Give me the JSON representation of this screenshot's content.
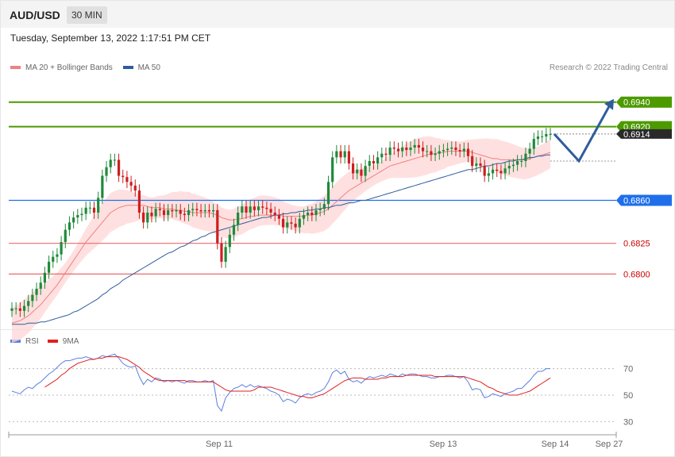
{
  "header": {
    "symbol": "AUD/USD",
    "timeframe": "30 MIN",
    "datetime": "Tuesday, September 13, 2022 1:17:51 PM CET"
  },
  "legend": {
    "ma20": "MA 20 + Bollinger Bands",
    "ma50": "MA 50",
    "copyright": "Research © 2022 Trading Central"
  },
  "rsi_legend": {
    "rsi": "RSI",
    "ma9": "9MA"
  },
  "colors": {
    "resistance": "#4c9a00",
    "pivot": "#1f6feb",
    "support": "#ec6a6a",
    "support_text": "#cc0000",
    "current": "#2a2a2a",
    "bull": "#1f8a3a",
    "bear": "#cc1f1f",
    "bollinger": "#ffd6d6",
    "ma20": "#f08080",
    "ma50": "#2f5d9c",
    "rsi": "#5b7fe0",
    "rsi_ma": "#e01f1f",
    "arrow": "#2f5d9c"
  },
  "chart_data": [
    {
      "type": "candlestick",
      "symbol": "AUD/USD",
      "interval": "30 MIN",
      "ylim": [
        0.6755,
        0.6965
      ],
      "levels": [
        {
          "value": 0.694,
          "label": "0.6940",
          "kind": "resistance"
        },
        {
          "value": 0.692,
          "label": "0.6920",
          "kind": "resistance"
        },
        {
          "value": 0.6914,
          "label": "0.6914",
          "kind": "current"
        },
        {
          "value": 0.686,
          "label": "0.6860",
          "kind": "pivot"
        },
        {
          "value": 0.6825,
          "label": "0.6825",
          "kind": "support"
        },
        {
          "value": 0.68,
          "label": "0.6800",
          "kind": "support"
        }
      ],
      "x_ticks": [
        "Sep 11",
        "Sep 13",
        "Sep 14",
        "Sep 27"
      ],
      "close": [
        0.6772,
        0.6772,
        0.677,
        0.6774,
        0.6778,
        0.6783,
        0.6788,
        0.6793,
        0.6801,
        0.681,
        0.6814,
        0.6816,
        0.6826,
        0.6836,
        0.6842,
        0.6846,
        0.6848,
        0.6849,
        0.6854,
        0.6854,
        0.685,
        0.6862,
        0.688,
        0.6887,
        0.6893,
        0.6893,
        0.688,
        0.6879,
        0.6875,
        0.6872,
        0.6868,
        0.685,
        0.6842,
        0.685,
        0.6847,
        0.6853,
        0.6852,
        0.6848,
        0.6852,
        0.6851,
        0.6852,
        0.6849,
        0.6848,
        0.6852,
        0.6853,
        0.6852,
        0.6851,
        0.6852,
        0.6851,
        0.6852,
        0.6825,
        0.681,
        0.6822,
        0.6832,
        0.684,
        0.685,
        0.6855,
        0.685,
        0.6855,
        0.6852,
        0.6855,
        0.6854,
        0.6853,
        0.685,
        0.6848,
        0.6845,
        0.6838,
        0.6842,
        0.6841,
        0.6838,
        0.6845,
        0.6848,
        0.685,
        0.6848,
        0.6852,
        0.6853,
        0.6857,
        0.6875,
        0.6895,
        0.69,
        0.6895,
        0.69,
        0.689,
        0.6882,
        0.6885,
        0.688,
        0.6888,
        0.6892,
        0.689,
        0.6895,
        0.6898,
        0.6897,
        0.6903,
        0.6902,
        0.69,
        0.6903,
        0.6901,
        0.6903,
        0.6905,
        0.6903,
        0.69,
        0.69,
        0.6897,
        0.6898,
        0.69,
        0.6901,
        0.6902,
        0.6903,
        0.6901,
        0.69,
        0.6902,
        0.6896,
        0.6888,
        0.689,
        0.6888,
        0.688,
        0.6882,
        0.6885,
        0.6884,
        0.6882,
        0.6886,
        0.6888,
        0.6889,
        0.6892,
        0.6892,
        0.6898,
        0.6902,
        0.691,
        0.6912,
        0.6912,
        0.6914,
        0.6914
      ],
      "ma20": [
        0.676,
        0.6761,
        0.6762,
        0.6764,
        0.6766,
        0.6769,
        0.6772,
        0.6775,
        0.6779,
        0.6783,
        0.6787,
        0.6791,
        0.6796,
        0.6801,
        0.6806,
        0.6811,
        0.6816,
        0.6821,
        0.6826,
        0.683,
        0.6834,
        0.6838,
        0.6842,
        0.6846,
        0.685,
        0.6852,
        0.6854,
        0.6855,
        0.6856,
        0.6856,
        0.6856,
        0.6856,
        0.6856,
        0.6855,
        0.6854,
        0.6854,
        0.6854,
        0.6853,
        0.6853,
        0.6853,
        0.6852,
        0.6852,
        0.6851,
        0.6851,
        0.685,
        0.685,
        0.685,
        0.685,
        0.685,
        0.6849,
        0.6848,
        0.6846,
        0.6845,
        0.6844,
        0.6844,
        0.6845,
        0.6845,
        0.6846,
        0.6847,
        0.6847,
        0.6848,
        0.6848,
        0.6848,
        0.6848,
        0.6848,
        0.6848,
        0.6847,
        0.6847,
        0.6847,
        0.6847,
        0.6847,
        0.6847,
        0.6848,
        0.6848,
        0.6849,
        0.685,
        0.6851,
        0.6853,
        0.6856,
        0.6859,
        0.6862,
        0.6865,
        0.6868,
        0.687,
        0.6872,
        0.6874,
        0.6876,
        0.6878,
        0.688,
        0.6882,
        0.6884,
        0.6886,
        0.6888,
        0.6889,
        0.689,
        0.6891,
        0.6892,
        0.6893,
        0.6894,
        0.6895,
        0.6896,
        0.6897,
        0.6898,
        0.6898,
        0.6899,
        0.6899,
        0.69,
        0.69,
        0.69,
        0.69,
        0.69,
        0.69,
        0.6899,
        0.6898,
        0.6897,
        0.6896,
        0.6895,
        0.6894,
        0.6894,
        0.6893,
        0.6893,
        0.6893,
        0.6893,
        0.6893,
        0.6893,
        0.6893,
        0.6894,
        0.6895,
        0.6896,
        0.6897,
        0.6898,
        0.6899
      ],
      "ma50": [
        0.6759,
        0.6759,
        0.6759,
        0.6759,
        0.676,
        0.676,
        0.676,
        0.6761,
        0.6761,
        0.6762,
        0.6763,
        0.6764,
        0.6765,
        0.6766,
        0.6767,
        0.6769,
        0.677,
        0.6772,
        0.6774,
        0.6776,
        0.6778,
        0.678,
        0.6783,
        0.6785,
        0.6788,
        0.679,
        0.6792,
        0.6795,
        0.6797,
        0.6799,
        0.6801,
        0.6803,
        0.6805,
        0.6807,
        0.6809,
        0.6811,
        0.6813,
        0.6815,
        0.6817,
        0.6818,
        0.682,
        0.6822,
        0.6823,
        0.6825,
        0.6827,
        0.6828,
        0.683,
        0.6831,
        0.6833,
        0.6834,
        0.6835,
        0.6836,
        0.6837,
        0.6838,
        0.6839,
        0.684,
        0.6841,
        0.6842,
        0.6843,
        0.6844,
        0.6845,
        0.6846,
        0.6846,
        0.6847,
        0.6848,
        0.6848,
        0.6849,
        0.6849,
        0.685,
        0.685,
        0.6851,
        0.6851,
        0.6852,
        0.6852,
        0.6853,
        0.6853,
        0.6854,
        0.6854,
        0.6855,
        0.6856,
        0.6856,
        0.6857,
        0.6858,
        0.6858,
        0.6859,
        0.686,
        0.686,
        0.6861,
        0.6862,
        0.6863,
        0.6864,
        0.6865,
        0.6866,
        0.6867,
        0.6868,
        0.6869,
        0.687,
        0.6871,
        0.6872,
        0.6873,
        0.6874,
        0.6875,
        0.6876,
        0.6877,
        0.6878,
        0.6879,
        0.688,
        0.6881,
        0.6882,
        0.6883,
        0.6884,
        0.6885,
        0.6885,
        0.6886,
        0.6887,
        0.6888,
        0.6888,
        0.6889,
        0.689,
        0.689,
        0.6891,
        0.6892,
        0.6892,
        0.6893,
        0.6893,
        0.6894,
        0.6895,
        0.6895,
        0.6896,
        0.6896,
        0.6897,
        0.6897
      ],
      "bb_width": 0.0012,
      "forecast_path": [
        0.6914,
        0.6892,
        0.694
      ]
    },
    {
      "type": "line",
      "title": "RSI",
      "ylim": [
        20,
        80
      ],
      "grid_levels": [
        70,
        50,
        30
      ],
      "series": [
        {
          "name": "RSI",
          "values": [
            53,
            52,
            51,
            54,
            56,
            55,
            58,
            60,
            63,
            66,
            68,
            71,
            74,
            76,
            76,
            77,
            78,
            78,
            79,
            78,
            77,
            78,
            80,
            79,
            80,
            81,
            78,
            74,
            72,
            71,
            72,
            64,
            58,
            62,
            60,
            63,
            62,
            60,
            61,
            60,
            61,
            60,
            59,
            61,
            61,
            60,
            60,
            61,
            60,
            61,
            42,
            38,
            48,
            52,
            55,
            56,
            58,
            56,
            58,
            56,
            57,
            56,
            55,
            53,
            52,
            50,
            45,
            47,
            46,
            44,
            48,
            50,
            51,
            50,
            52,
            53,
            55,
            60,
            67,
            69,
            66,
            68,
            62,
            60,
            61,
            59,
            62,
            64,
            63,
            64,
            65,
            64,
            66,
            65,
            64,
            66,
            65,
            66,
            66,
            65,
            64,
            64,
            63,
            63,
            64,
            64,
            65,
            65,
            64,
            63,
            64,
            60,
            54,
            55,
            54,
            48,
            49,
            51,
            50,
            49,
            51,
            52,
            53,
            55,
            55,
            58,
            61,
            65,
            68,
            68,
            70,
            70
          ]
        },
        {
          "name": "9MA",
          "values": [
            null,
            null,
            null,
            null,
            null,
            null,
            null,
            null,
            56,
            58,
            60,
            62,
            65,
            67,
            70,
            72,
            74,
            75,
            76,
            77,
            77,
            78,
            78,
            79,
            79,
            79,
            79,
            78,
            77,
            75,
            73,
            71,
            68,
            66,
            64,
            62,
            61,
            61,
            61,
            61,
            61,
            61,
            61,
            60,
            60,
            60,
            60,
            60,
            60,
            60,
            58,
            56,
            54,
            53,
            53,
            53,
            53,
            53,
            53,
            54,
            56,
            56,
            56,
            56,
            55,
            54,
            53,
            52,
            51,
            50,
            49,
            49,
            48,
            48,
            49,
            50,
            51,
            53,
            55,
            57,
            59,
            61,
            62,
            63,
            63,
            63,
            62,
            62,
            62,
            62,
            63,
            63,
            64,
            64,
            64,
            64,
            65,
            65,
            65,
            65,
            65,
            65,
            65,
            64,
            64,
            64,
            64,
            64,
            64,
            64,
            64,
            63,
            62,
            61,
            60,
            58,
            56,
            55,
            53,
            52,
            51,
            50,
            50,
            50,
            51,
            52,
            53,
            55,
            57,
            59,
            61,
            63
          ]
        }
      ]
    }
  ]
}
